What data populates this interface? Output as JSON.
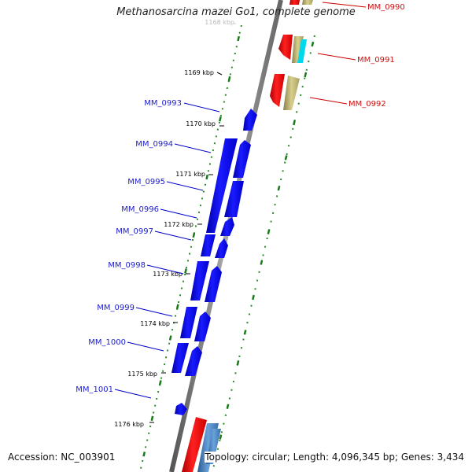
{
  "title": "Methanosarcina mazei Go1, complete genome",
  "accession_text": "Accession: NC_003901",
  "summary_text": "Topology: circular; Length: 4,096,345 bp; Genes: 3,434",
  "scale_ticks": [
    {
      "label": "1168 kbp",
      "faded": true
    },
    {
      "label": "1169 kbp"
    },
    {
      "label": "1170 kbp"
    },
    {
      "label": "1171 kbp"
    },
    {
      "label": "1172 kbp"
    },
    {
      "label": "1173 kbp"
    },
    {
      "label": "1174 kbp"
    },
    {
      "label": "1175 kbp"
    },
    {
      "label": "1176 kbp"
    }
  ],
  "genes_minus": [
    {
      "name": "MM_0993"
    },
    {
      "name": "MM_0994"
    },
    {
      "name": "MM_0995"
    },
    {
      "name": "MM_0996"
    },
    {
      "name": "MM_0997"
    },
    {
      "name": "MM_0998"
    },
    {
      "name": "MM_0999"
    },
    {
      "name": "MM_1000"
    },
    {
      "name": "MM_1001"
    }
  ],
  "genes_plus": [
    {
      "name": "MM_0990"
    },
    {
      "name": "MM_0991"
    },
    {
      "name": "MM_0992"
    }
  ],
  "colors": {
    "minus_strand_gene": "#0000ee",
    "plus_strand_gene": "#ee0000",
    "backbone": "#777777",
    "gc_track": "#228822",
    "khaki_feature": "#c8be78",
    "cyan_feature": "#00d8ee",
    "steelblue_feature": "#4a88c8"
  }
}
